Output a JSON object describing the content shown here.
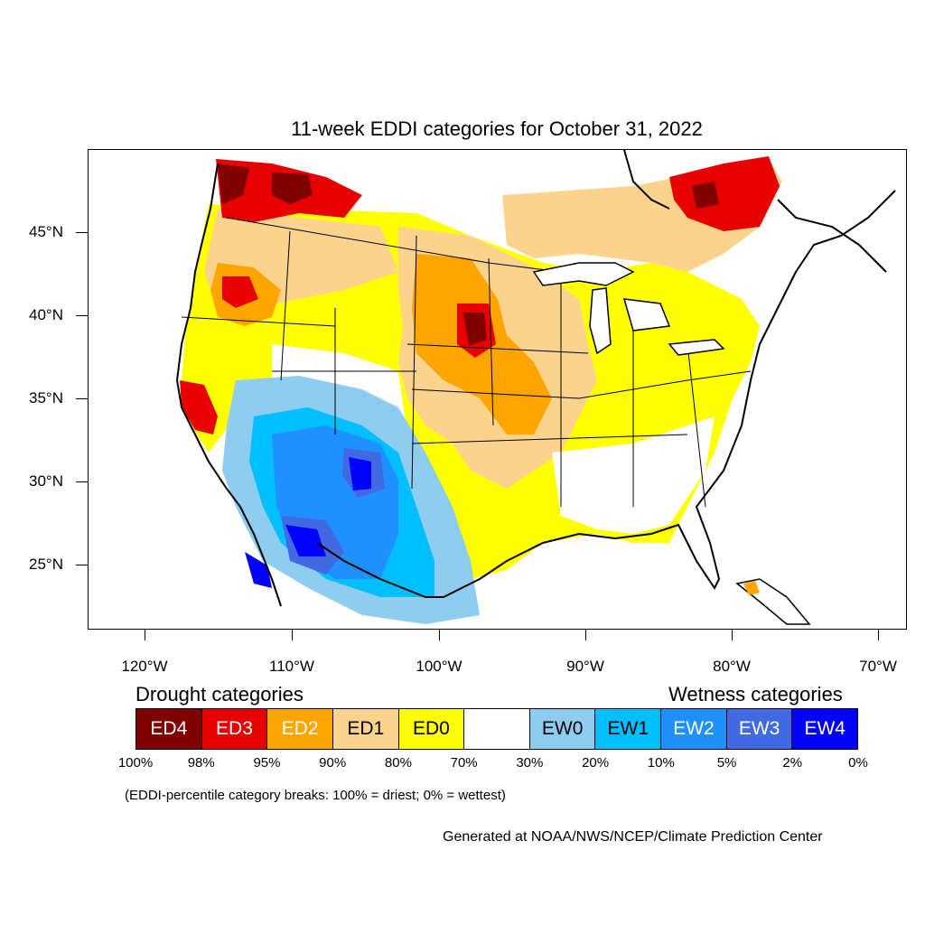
{
  "title": "11-week EDDI categories for October 31, 2022",
  "y_ticks": [
    {
      "label": "45°N"
    },
    {
      "label": "40°N"
    },
    {
      "label": "35°N"
    },
    {
      "label": "30°N"
    },
    {
      "label": "25°N"
    }
  ],
  "x_ticks": [
    {
      "label": "120°W"
    },
    {
      "label": "110°W"
    },
    {
      "label": "100°W"
    },
    {
      "label": "90°W"
    },
    {
      "label": "80°W"
    },
    {
      "label": "70°W"
    }
  ],
  "legend": {
    "drought_heading": "Drought categories",
    "wetness_heading": "Wetness categories",
    "boxes": [
      {
        "label": "ED4",
        "color": "#800000",
        "text_color": "#ffffff"
      },
      {
        "label": "ED3",
        "color": "#e60000",
        "text_color": "#ffffff"
      },
      {
        "label": "ED2",
        "color": "#ffa500",
        "text_color": "#ffffff"
      },
      {
        "label": "ED1",
        "color": "#fcd38d",
        "text_color": "#000000"
      },
      {
        "label": "ED0",
        "color": "#ffff00",
        "text_color": "#000000"
      },
      {
        "label": "",
        "color": "#ffffff",
        "text_color": "#000000"
      },
      {
        "label": "EW0",
        "color": "#8fcdf0",
        "text_color": "#000000"
      },
      {
        "label": "EW1",
        "color": "#00bfff",
        "text_color": "#000000"
      },
      {
        "label": "EW2",
        "color": "#1e90ff",
        "text_color": "#ffffff"
      },
      {
        "label": "EW3",
        "color": "#4169e1",
        "text_color": "#ffffff"
      },
      {
        "label": "EW4",
        "color": "#0000ff",
        "text_color": "#ffffff"
      }
    ],
    "percentiles": [
      "100%",
      "98%",
      "95%",
      "90%",
      "80%",
      "70%",
      "30%",
      "20%",
      "10%",
      "5%",
      "2%",
      "0%"
    ]
  },
  "note": "(EDDI-percentile category breaks: 100% = driest; 0% = wettest)",
  "credit": "Generated at NOAA/NWS/NCEP/Climate Prediction Center"
}
